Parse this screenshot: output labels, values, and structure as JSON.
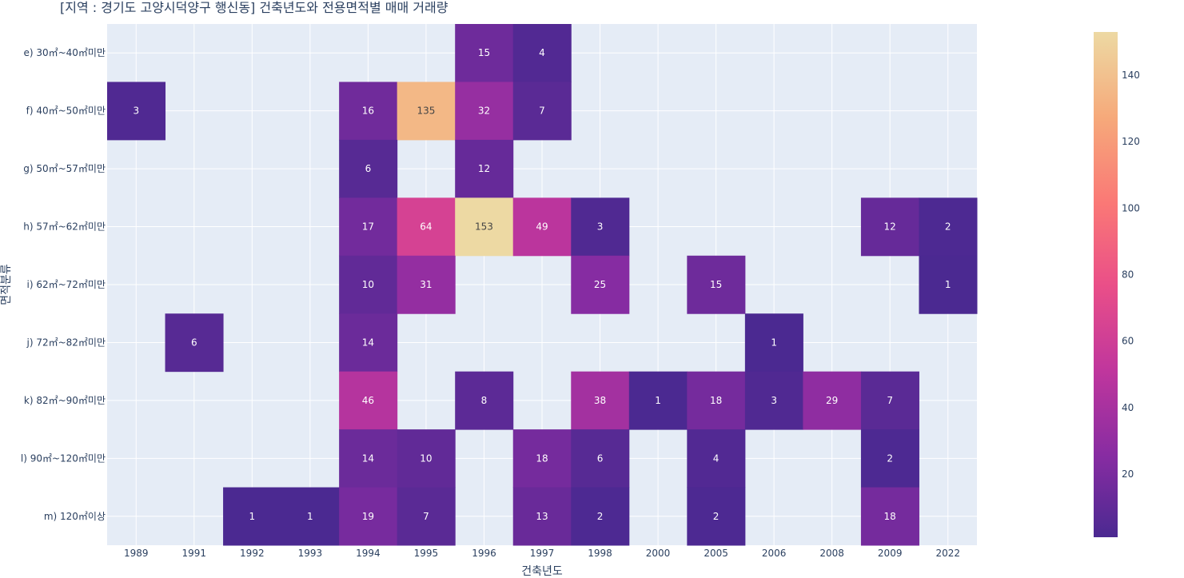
{
  "chart_data": {
    "type": "heatmap",
    "title": "[지역 : 경기도 고양시덕양구 행신동] 건축년도와 전용면적별 매매 거래량",
    "xlabel": "건축년도",
    "ylabel": "면적분류",
    "x": [
      "1989",
      "1991",
      "1992",
      "1993",
      "1994",
      "1995",
      "1996",
      "1997",
      "1998",
      "2000",
      "2005",
      "2006",
      "2008",
      "2009",
      "2022"
    ],
    "y": [
      "e) 30㎡~40㎡미만",
      "f) 40㎡~50㎡미만",
      "g) 50㎡~57㎡미만",
      "h) 57㎡~62㎡미만",
      "i) 62㎡~72㎡미만",
      "j) 72㎡~82㎡미만",
      "k) 82㎡~90㎡미만",
      "l) 90㎡~120㎡미만",
      "m) 120㎡이상"
    ],
    "z": [
      [
        null,
        null,
        null,
        null,
        null,
        null,
        15,
        4,
        null,
        null,
        null,
        null,
        null,
        null,
        null
      ],
      [
        3,
        null,
        null,
        null,
        16,
        135,
        32,
        7,
        null,
        null,
        null,
        null,
        null,
        null,
        null
      ],
      [
        null,
        null,
        null,
        null,
        6,
        null,
        12,
        null,
        null,
        null,
        null,
        null,
        null,
        null,
        null
      ],
      [
        null,
        null,
        null,
        null,
        17,
        64,
        153,
        49,
        3,
        null,
        null,
        null,
        null,
        12,
        2
      ],
      [
        null,
        null,
        null,
        null,
        10,
        31,
        null,
        null,
        25,
        null,
        15,
        null,
        null,
        null,
        1
      ],
      [
        null,
        6,
        null,
        null,
        14,
        null,
        null,
        null,
        null,
        null,
        null,
        1,
        null,
        null,
        null
      ],
      [
        null,
        null,
        null,
        null,
        46,
        null,
        8,
        null,
        38,
        1,
        18,
        3,
        29,
        7,
        null
      ],
      [
        null,
        null,
        null,
        null,
        14,
        10,
        null,
        18,
        6,
        null,
        4,
        null,
        null,
        2,
        null
      ],
      [
        null,
        null,
        1,
        1,
        19,
        7,
        null,
        13,
        2,
        null,
        2,
        null,
        null,
        18,
        null
      ]
    ],
    "zmin": 1,
    "zmax": 153,
    "colorscale": "plasma-like (agsunset)",
    "colorbar_ticks": [
      20,
      40,
      60,
      80,
      100,
      120,
      140
    ]
  },
  "colors": {
    "plot_bg": "#e5ecf6",
    "grid": "#ffffff",
    "text": "#2a3f5f"
  }
}
